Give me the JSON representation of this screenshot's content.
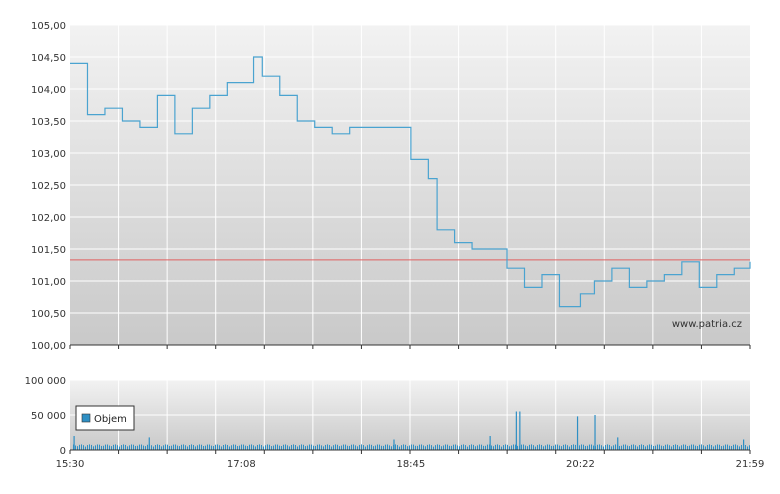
{
  "watermark": "www.patria.cz",
  "colors": {
    "price_line": "#4aa3d0",
    "reference_line": "#e06060",
    "volume_bar": "#2e8fc4",
    "grid": "#ffffff",
    "axis_text": "#333333",
    "panel_top": "#f2f2f2",
    "panel_bottom": "#c9c9c9"
  },
  "chart_data": [
    {
      "type": "line",
      "panel": "price",
      "ylim": [
        100.0,
        105.0
      ],
      "yticks": [
        "105,00",
        "104,50",
        "104,00",
        "103,50",
        "103,00",
        "102,50",
        "102,00",
        "101,50",
        "101,00",
        "100,50",
        "100,00"
      ],
      "ytick_values": [
        105.0,
        104.5,
        104.0,
        103.5,
        103.0,
        102.5,
        102.0,
        101.5,
        101.0,
        100.5,
        100.0
      ],
      "reference_level": 101.33,
      "grid": true,
      "x": [
        "15:30",
        "15:40",
        "15:50",
        "16:00",
        "16:10",
        "16:20",
        "16:30",
        "16:40",
        "16:50",
        "17:00",
        "17:08",
        "17:15",
        "17:20",
        "17:30",
        "17:40",
        "17:50",
        "18:00",
        "18:10",
        "18:20",
        "18:30",
        "18:40",
        "18:45",
        "18:55",
        "19:00",
        "19:10",
        "19:20",
        "19:30",
        "19:40",
        "19:50",
        "20:00",
        "20:10",
        "20:22",
        "20:30",
        "20:40",
        "20:50",
        "21:00",
        "21:10",
        "21:20",
        "21:30",
        "21:40",
        "21:50",
        "21:59"
      ],
      "values": [
        104.4,
        103.6,
        103.7,
        103.5,
        103.4,
        103.9,
        103.3,
        103.7,
        103.9,
        104.1,
        104.1,
        104.5,
        104.2,
        103.9,
        103.5,
        103.4,
        103.3,
        103.4,
        103.4,
        103.4,
        103.4,
        102.9,
        102.6,
        101.8,
        101.6,
        101.5,
        101.5,
        101.2,
        100.9,
        101.1,
        100.6,
        100.8,
        101.0,
        101.2,
        100.9,
        101.0,
        101.1,
        101.3,
        100.9,
        101.1,
        101.2,
        101.3
      ]
    },
    {
      "type": "bar",
      "panel": "volume",
      "ylim": [
        0,
        100000
      ],
      "yticks": [
        "100 000",
        "50 000",
        "0"
      ],
      "ytick_values": [
        100000,
        50000,
        0
      ],
      "legend": [
        "Objem"
      ],
      "legend_position": "left",
      "grid": true,
      "spikes": [
        {
          "x": "15:32",
          "value": 20000
        },
        {
          "x": "16:15",
          "value": 18000
        },
        {
          "x": "18:35",
          "value": 15000
        },
        {
          "x": "19:30",
          "value": 20000
        },
        {
          "x": "19:45",
          "value": 55000
        },
        {
          "x": "19:47",
          "value": 55000
        },
        {
          "x": "20:20",
          "value": 48000
        },
        {
          "x": "20:30",
          "value": 50000
        },
        {
          "x": "20:43",
          "value": 18000
        },
        {
          "x": "21:55",
          "value": 15000
        }
      ],
      "typical_value": 8000
    }
  ],
  "x_axis": {
    "ticks": [
      "15:30",
      "17:08",
      "18:45",
      "20:22",
      "21:59"
    ]
  }
}
